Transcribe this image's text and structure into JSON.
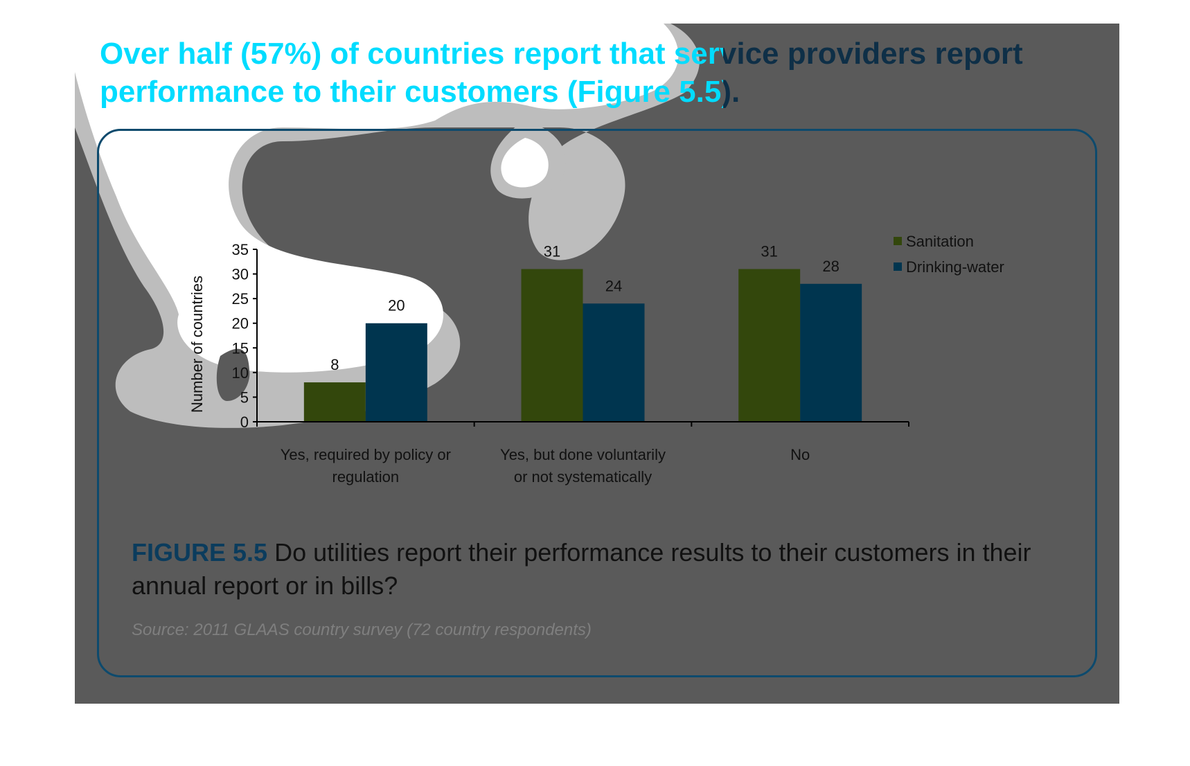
{
  "headline": {
    "line1": "Over half (57%) of countries report that service providers report",
    "line2": "performance to their customers (Figure 5.5)."
  },
  "caption": {
    "figure_label": "FIGURE 5.5",
    "text": "Do utilities report their performance results to their customers in their annual report or in bills?"
  },
  "source": "Source: 2011 GLAAS country survey (72 country respondents)",
  "colors": {
    "background": "#5a5a5a",
    "headline_cyan": "#00dcff",
    "headline_dark": "#0e2f47",
    "sanitation": "#33470c",
    "drinking_water": "#00354f"
  },
  "chart_data": {
    "type": "bar",
    "categories": [
      [
        "Yes, required by policy or",
        "regulation"
      ],
      [
        "Yes, but done voluntarily",
        "or not systematically"
      ],
      [
        "No"
      ]
    ],
    "series": [
      {
        "name": "Sanitation",
        "values": [
          8,
          31,
          31
        ],
        "color": "#33470c"
      },
      {
        "name": "Drinking-water",
        "values": [
          20,
          24,
          28
        ],
        "color": "#00354f"
      }
    ],
    "ylabel": "Number of countries",
    "ylim": [
      0,
      35
    ],
    "yticks": [
      0,
      5,
      10,
      15,
      20,
      25,
      30,
      35
    ],
    "grid": false,
    "legend": "top-right",
    "data_labels": true
  }
}
